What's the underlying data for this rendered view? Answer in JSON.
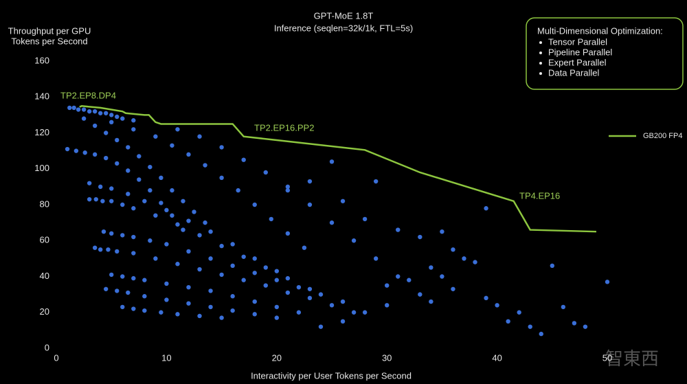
{
  "chart_data": {
    "type": "scatter",
    "title": "GPT-MoE 1.8T",
    "subtitle": "Inference (seqlen=32k/1k, FTL=5s)",
    "y_label": [
      "Throughput per GPU",
      "Tokens per Second"
    ],
    "x_label": "Interactivity per User Tokens per Second",
    "xlim": [
      0,
      50
    ],
    "xticks": [
      0,
      10,
      20,
      30,
      40,
      50
    ],
    "ylim": [
      0,
      160
    ],
    "yticks": [
      0,
      20,
      40,
      60,
      80,
      100,
      120,
      140,
      160
    ],
    "grid": false,
    "legend_position": "right",
    "info_box": {
      "title": "Multi-Dimensional Optimization:",
      "items": [
        "Tensor Parallel",
        "Pipeline Parallel",
        "Expert Parallel",
        "Data Parallel"
      ]
    },
    "annotations": [
      "TP2.EP8.DP4",
      "TP2.EP16.PP2",
      "TP4.EP16"
    ],
    "watermark": "智東西",
    "series": [
      {
        "type": "scatter",
        "color": "#3a6fd8",
        "x": [
          1.2,
          1.6,
          2,
          2.5,
          3,
          3.5,
          4,
          4.5,
          5,
          5.5,
          6,
          7,
          2.5,
          3.5,
          4.5,
          5.5,
          6.5,
          7.5,
          8.5,
          9.5,
          10.5,
          11.5,
          12.5,
          13.5,
          5,
          7,
          9,
          10.5,
          12,
          13.5,
          15,
          16.5,
          18,
          19.5,
          21,
          22.5,
          11,
          13,
          15,
          17,
          19,
          21,
          23,
          25,
          27,
          29,
          31,
          33,
          1,
          1.8,
          2.6,
          3.5,
          4.5,
          5.5,
          6.5,
          7.5,
          8.5,
          9.5,
          10.5,
          11.5,
          3,
          4,
          5,
          6.5,
          8,
          10,
          12,
          14,
          16,
          18,
          20,
          3,
          3.6,
          4.2,
          5,
          6,
          7,
          9,
          11,
          13,
          15,
          17,
          19,
          21,
          23,
          4.3,
          5,
          6,
          7,
          8.5,
          10,
          12,
          14,
          16,
          18,
          20,
          22,
          24,
          26,
          3.5,
          4,
          4.7,
          5.5,
          7,
          9,
          11,
          13,
          15,
          17,
          19,
          21,
          23,
          25,
          27,
          5,
          6,
          7,
          8,
          10,
          12,
          14,
          16,
          18,
          20,
          22,
          4.5,
          5.5,
          6.5,
          8,
          10,
          12,
          14,
          16,
          18,
          20,
          6,
          7,
          8,
          9.5,
          11,
          13,
          15,
          25,
          29,
          23,
          21,
          26,
          28,
          31,
          33,
          35,
          36,
          37,
          38,
          39,
          34,
          32,
          30,
          35,
          39,
          40,
          42,
          41,
          43,
          44,
          45,
          46,
          47,
          48,
          50,
          36,
          34,
          30,
          28,
          26,
          24
        ],
        "values": [
          134,
          134,
          133,
          133,
          132,
          132,
          131,
          131,
          130,
          129,
          128,
          127,
          128,
          124,
          120,
          116,
          112,
          107,
          101,
          95,
          88,
          82,
          76,
          70,
          126,
          122,
          118,
          113,
          108,
          102,
          95,
          88,
          80,
          72,
          64,
          56,
          122,
          118,
          112,
          105,
          98,
          90,
          80,
          70,
          60,
          50,
          40,
          30,
          111,
          110,
          109,
          108,
          106,
          103,
          99,
          94,
          88,
          81,
          74,
          66,
          92,
          90,
          89,
          86,
          82,
          77,
          71,
          65,
          58,
          50,
          43,
          83,
          83,
          82,
          82,
          80,
          78,
          74,
          69,
          63,
          57,
          51,
          45,
          39,
          33,
          65,
          64,
          63,
          62,
          60,
          58,
          54,
          50,
          46,
          42,
          38,
          34,
          30,
          26,
          56,
          55,
          55,
          54,
          53,
          50,
          47,
          44,
          41,
          38,
          35,
          31,
          28,
          24,
          20,
          41,
          40,
          39,
          38,
          36,
          34,
          32,
          29,
          26,
          23,
          20,
          33,
          32,
          31,
          29,
          27,
          25,
          23,
          21,
          19,
          17,
          23,
          22,
          21,
          20,
          19,
          18,
          17,
          104,
          93,
          93,
          88,
          82,
          72,
          66,
          62,
          65,
          55,
          50,
          48,
          78,
          45,
          38,
          35,
          40,
          28,
          24,
          20,
          15,
          12,
          8,
          46,
          23,
          14,
          12,
          37,
          33,
          26,
          24,
          20,
          15,
          12
        ]
      },
      {
        "type": "line",
        "name": "GB200 FP4",
        "color": "#8dc63f",
        "x": [
          2.1,
          2.3,
          4,
          6,
          6.3,
          8,
          8.4,
          9,
          9.5,
          16,
          17,
          20,
          28,
          33,
          41.5,
          43,
          49
        ],
        "values": [
          134.5,
          135,
          134,
          132,
          131,
          130,
          130,
          126,
          125,
          125,
          118,
          116,
          110.5,
          98,
          82,
          66,
          65
        ]
      }
    ]
  }
}
